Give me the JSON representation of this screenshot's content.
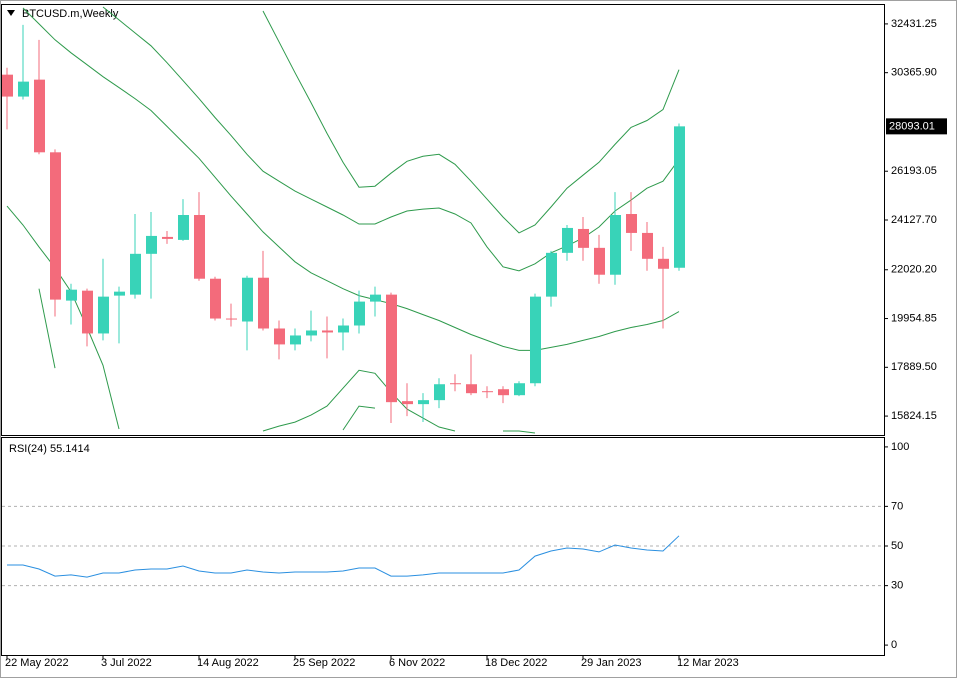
{
  "chart_data": [
    {
      "type": "candlestick",
      "title": "BTCUSD.m,Weekly",
      "categories": [
        "22 May 2022",
        null,
        null,
        null,
        null,
        null,
        "3 Jul 2022",
        null,
        null,
        null,
        null,
        null,
        "14 Aug 2022",
        null,
        null,
        null,
        null,
        null,
        "25 Sep 2022",
        null,
        null,
        null,
        null,
        null,
        "6 Nov 2022",
        null,
        null,
        null,
        null,
        null,
        "18 Dec 2022",
        null,
        null,
        null,
        null,
        null,
        "29 Jan 2023",
        null,
        null,
        null,
        null,
        null,
        "12 Mar 2023"
      ],
      "open": [
        30282,
        29354,
        30071,
        26994,
        20714,
        21135,
        19323,
        20925,
        20967,
        22695,
        23411,
        23285,
        24339,
        21641,
        19955,
        19829,
        21683,
        19533,
        18859,
        19238,
        19449,
        19365,
        19660,
        20672,
        20967,
        16457,
        16330,
        16499,
        17215,
        17173,
        16878,
        16962,
        16709,
        17215,
        20882,
        22737,
        23748,
        22948,
        21810,
        24381,
        23580,
        22484,
        22105
      ],
      "high": [
        30577,
        32389,
        31757,
        27120,
        21430,
        21219,
        22484,
        21304,
        24381,
        24465,
        23664,
        25013,
        25308,
        21725,
        20587,
        21767,
        22821,
        19871,
        19533,
        20292,
        20039,
        19955,
        21135,
        21304,
        21051,
        17215,
        16794,
        17426,
        17595,
        18438,
        17089,
        17089,
        17300,
        21009,
        22821,
        23917,
        24254,
        23496,
        25308,
        25308,
        24044,
        22990,
        28216
      ],
      "low": [
        27963,
        29228,
        26910,
        20039,
        19702,
        18775,
        19028,
        18901,
        20798,
        20798,
        23116,
        23243,
        21557,
        19871,
        19618,
        18606,
        19449,
        18227,
        18606,
        18986,
        18269,
        18606,
        19323,
        20039,
        15529,
        15824,
        15571,
        16161,
        16878,
        16709,
        16583,
        16372,
        16667,
        17089,
        20461,
        22400,
        22400,
        21430,
        21388,
        22821,
        21978,
        19533,
        21978
      ],
      "close": [
        29354,
        29987,
        26994,
        20756,
        21177,
        19323,
        20882,
        21093,
        22695,
        23453,
        23327,
        24339,
        21641,
        19955,
        19913,
        21683,
        19533,
        18859,
        19238,
        19449,
        19365,
        19660,
        20672,
        20967,
        16414,
        16330,
        16499,
        17173,
        17173,
        16794,
        16836,
        16709,
        17215,
        20882,
        22737,
        23791,
        22948,
        21810,
        24339,
        23580,
        22484,
        22062,
        28093.01
      ],
      "up_color": "#38d3b8",
      "down_color": "#f36b7b",
      "bands": [
        {
          "color": "#2e9a4c",
          "values": [
            null,
            null,
            null,
            null,
            null,
            null,
            null,
            null,
            null,
            null,
            null,
            null,
            null,
            null,
            null,
            null,
            32978,
            31672,
            30366,
            29101,
            27795,
            26572,
            25518,
            25560,
            26108,
            26614,
            26825,
            26909,
            26488,
            25771,
            25013,
            24254,
            23580,
            23917,
            24676,
            25476,
            26024,
            26572,
            27331,
            28047,
            28342,
            28806,
            30492
          ]
        },
        {
          "color": "#2e9a4c",
          "values": [
            null,
            null,
            null,
            null,
            null,
            null,
            33148,
            32600,
            32052,
            31504,
            30787,
            30029,
            29270,
            28469,
            27710,
            26909,
            26193,
            25771,
            25350,
            25013,
            24676,
            24339,
            23959,
            23959,
            24254,
            24507,
            24591,
            24634,
            24381,
            24001,
            22990,
            22147,
            21978,
            22273,
            22737,
            23032,
            23369,
            23832,
            24507,
            24971,
            25476,
            25771,
            26698
          ]
        },
        {
          "color": "#2e9a4c",
          "values": [
            null,
            33105,
            32431,
            31757,
            31209,
            30703,
            30197,
            29734,
            29270,
            28764,
            28090,
            27415,
            26741,
            25940,
            25139,
            24381,
            23622,
            22990,
            22357,
            21893,
            21557,
            21219,
            20925,
            20756,
            20587,
            20376,
            20123,
            19871,
            19576,
            19280,
            19028,
            18775,
            18606,
            18606,
            18733,
            18859,
            19028,
            19196,
            19407,
            19576,
            19702,
            19871,
            20250
          ]
        },
        {
          "color": "#2e9a4c",
          "values": [
            24717,
            23917,
            22990,
            22105,
            21093,
            19576,
            17973,
            15276,
            null,
            null,
            null,
            null,
            null,
            null,
            null,
            null,
            15191,
            15402,
            15571,
            15866,
            16245,
            17004,
            17763,
            17637,
            16836,
            16119,
            15740,
            15360,
            15191,
            null,
            null,
            15191,
            15191,
            15107,
            null,
            null,
            null,
            null,
            null,
            null,
            null,
            null,
            null
          ]
        },
        {
          "color": "#2e9a4c",
          "values": [
            null,
            null,
            21219,
            17858,
            null,
            null,
            null,
            null,
            null,
            null,
            null,
            null,
            null,
            null,
            null,
            null,
            null,
            null,
            null,
            null,
            null,
            15234,
            16245,
            16161,
            null,
            null,
            null,
            null,
            null,
            null,
            null,
            null,
            null,
            null,
            null,
            null,
            null,
            null,
            null,
            null,
            null,
            null,
            null
          ]
        }
      ],
      "ylim": [
        15023,
        33232
      ],
      "yticks": [
        15824.15,
        {
          "value": 17889.5,
          "label": "17889.50"
        },
        19954.85,
        {
          "value": 22020.2,
          "label": "22020.20"
        },
        {
          "value": 24127.7,
          "label": "24127.70"
        },
        26193.05,
        {
          "value": 30365.9,
          "label": "30365.90"
        },
        32431.25
      ]
    },
    {
      "type": "line",
      "title": "RSI(24)",
      "color": "#2a8fe0",
      "values": [
        40.4,
        40.4,
        38.4,
        34.8,
        35.4,
        34.3,
        36.4,
        36.4,
        37.9,
        38.4,
        38.4,
        39.9,
        37.4,
        36.4,
        36.4,
        37.9,
        36.9,
        36.4,
        36.9,
        36.9,
        36.9,
        37.4,
        38.9,
        38.9,
        34.8,
        34.8,
        35.4,
        36.4,
        36.4,
        36.4,
        36.4,
        36.4,
        37.9,
        44.9,
        47.5,
        49.0,
        48.5,
        47.0,
        50.5,
        49.0,
        48.0,
        47.5,
        55.1414
      ],
      "ylim": [
        -5,
        105
      ],
      "yticks": [
        0,
        30,
        50,
        70,
        100
      ],
      "levels": [
        30,
        50,
        70
      ]
    }
  ]
}
